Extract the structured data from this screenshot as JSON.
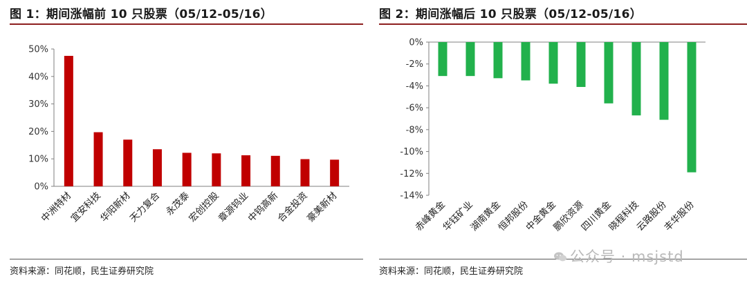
{
  "left": {
    "title": "图 1：期间涨幅前 10 只股票（05/12-05/16）",
    "source": "资料来源：同花顺，民生证券研究院"
  },
  "right": {
    "title": "图 2：期间涨幅后 10 只股票（05/12-05/16）",
    "source": "资料来源：同花顺，民生证券研究院"
  },
  "watermark": {
    "text": "公众号 · msjstd",
    "icon": "wechat-icon"
  },
  "colors": {
    "top_bar": "#c00000",
    "bottom_bar": "#22b14c",
    "title_rule": "#8c1d1d"
  },
  "chart_data": [
    {
      "type": "bar",
      "title": "图 1：期间涨幅前 10 只股票（05/12-05/16）",
      "categories": [
        "中洲特材",
        "宜安科技",
        "华阳新材",
        "天力复合",
        "永茂泰",
        "宏创控股",
        "章源钨业",
        "中钨高新",
        "合金投资",
        "豪美新材"
      ],
      "values": [
        47.5,
        19.7,
        17.0,
        13.5,
        12.2,
        12.0,
        11.3,
        11.1,
        9.9,
        9.7
      ],
      "unit": "%",
      "ylim": [
        0,
        50
      ],
      "yticks": [
        0,
        10,
        20,
        30,
        40,
        50
      ],
      "ytick_labels": [
        "0%",
        "10%",
        "20%",
        "30%",
        "40%",
        "50%"
      ],
      "grid": false,
      "color": "#c00000"
    },
    {
      "type": "bar",
      "title": "图 2：期间涨幅后 10 只股票（05/12-05/16）",
      "categories": [
        "赤峰黄金",
        "华钰矿业",
        "湖南黄金",
        "恒邦股份",
        "中金黄金",
        "鹏欣资源",
        "四川黄金",
        "晓程科技",
        "云路股份",
        "丰华股份"
      ],
      "values": [
        -3.1,
        -3.1,
        -3.3,
        -3.5,
        -3.8,
        -4.1,
        -5.6,
        -6.7,
        -7.1,
        -11.9
      ],
      "unit": "%",
      "ylim": [
        -14,
        0
      ],
      "yticks": [
        0,
        -2,
        -4,
        -6,
        -8,
        -10,
        -12,
        -14
      ],
      "ytick_labels": [
        "0%",
        "-2%",
        "-4%",
        "-6%",
        "-8%",
        "-10%",
        "-12%",
        "-14%"
      ],
      "grid": false,
      "color": "#22b14c"
    }
  ]
}
